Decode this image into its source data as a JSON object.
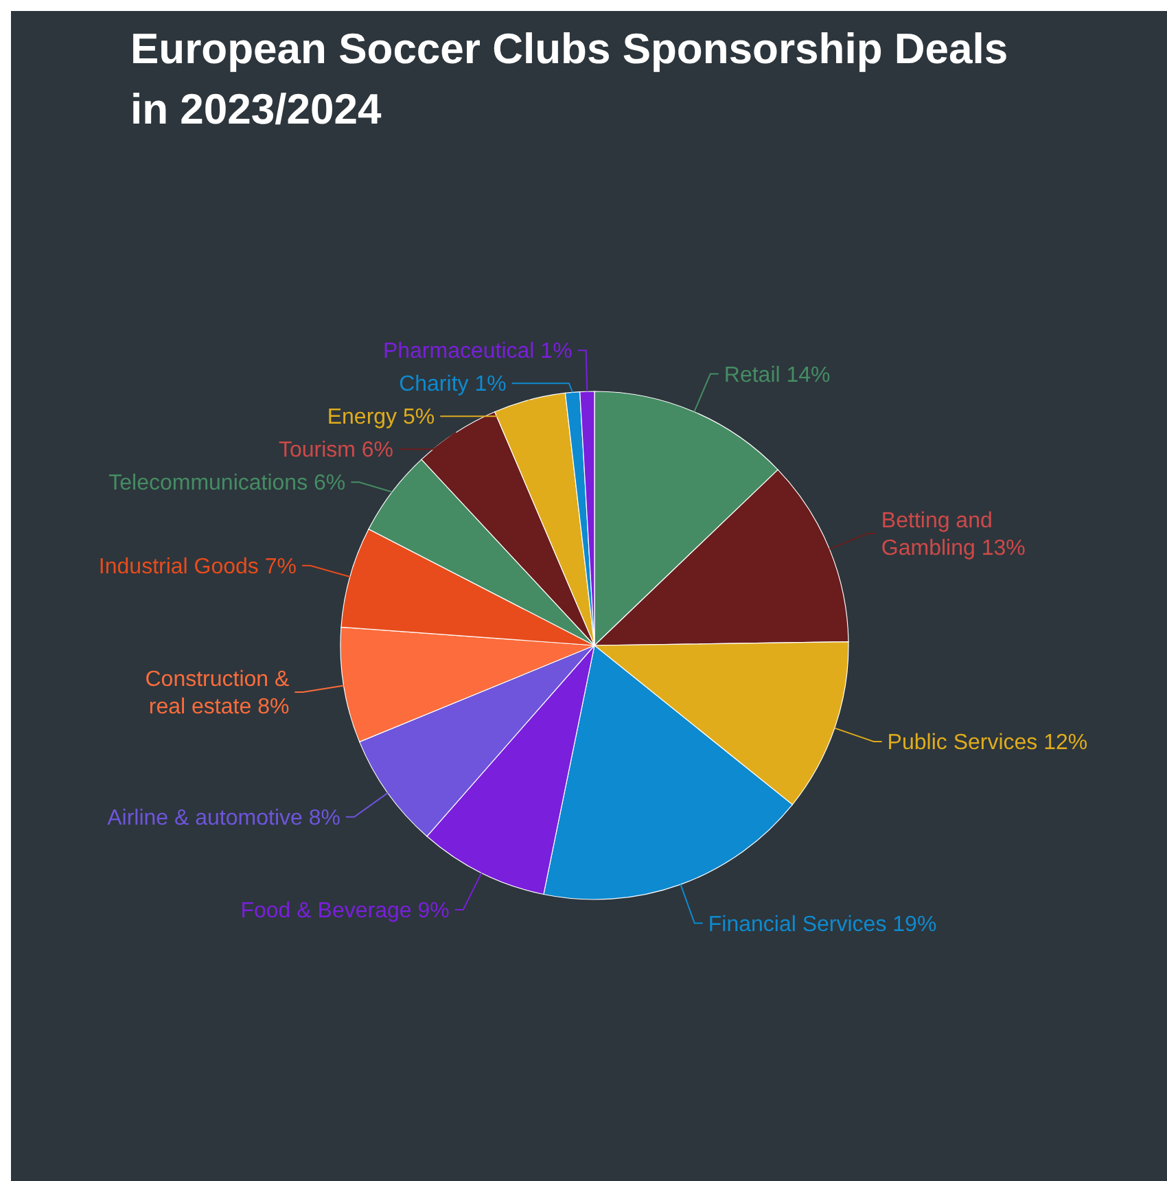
{
  "chart_data": {
    "type": "pie",
    "title": "European Soccer Clubs Sponsorship Deals in 2023/2024",
    "categories": [
      "Retail",
      "Betting and Gambling",
      "Public Services",
      "Financial Services",
      "Food & Beverage",
      "Airline & automotive",
      "Construction & real estate",
      "Industrial Goods",
      "Telecommunications",
      "Tourism",
      "Energy",
      "Charity",
      "Pharmaceutical"
    ],
    "values": [
      14,
      13,
      12,
      19,
      9,
      8,
      8,
      7,
      6,
      6,
      5,
      1,
      1
    ],
    "value_labels": [
      "14%",
      "13%",
      "12%",
      "19%",
      "9%",
      "8%",
      "8%",
      "7%",
      "6%",
      "6%",
      "5%",
      "1%",
      "1%"
    ],
    "colors": [
      "#458c64",
      "#6b1c1c",
      "#e0ac1c",
      "#0e8ad0",
      "#7a1fdc",
      "#6e55dc",
      "#fc6c3c",
      "#e84c1c",
      "#458c64",
      "#6b1c1c",
      "#e0ac1c",
      "#0e8ad0",
      "#7a1fdc"
    ]
  }
}
